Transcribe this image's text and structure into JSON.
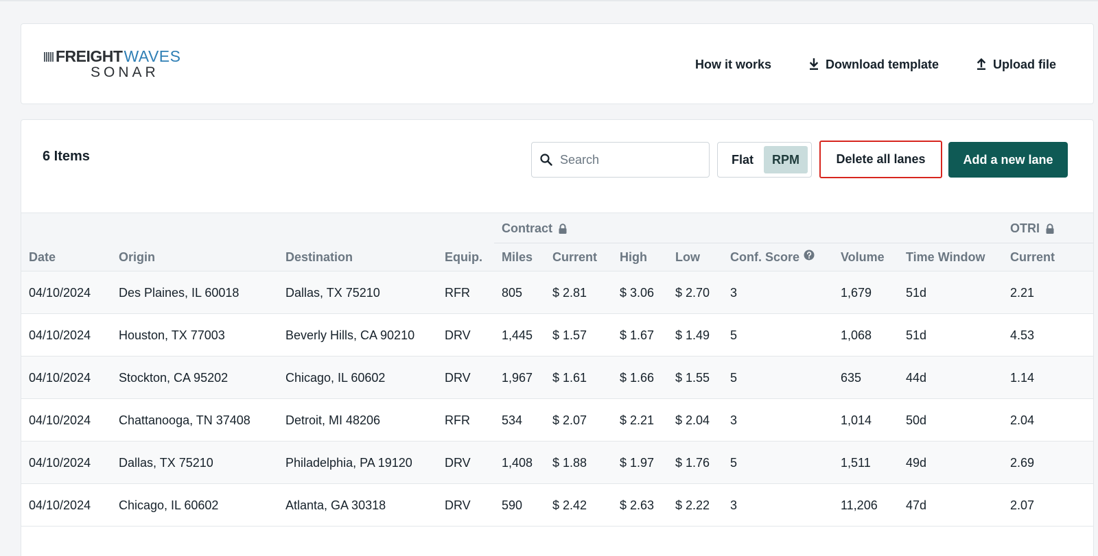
{
  "header": {
    "logo": {
      "brand_bold": "FREIGHT",
      "brand_light": "WAVES",
      "product": "SONAR"
    },
    "nav": [
      {
        "label": "How it works",
        "icon": "none"
      },
      {
        "label": "Download template",
        "icon": "download-icon"
      },
      {
        "label": "Upload file",
        "icon": "upload-icon"
      }
    ]
  },
  "toolbar": {
    "items_count": "6 Items",
    "search_placeholder": "Search",
    "search_value": "",
    "toggle": {
      "flat_label": "Flat",
      "rpm_label": "RPM",
      "selected": "RPM"
    },
    "delete_label": "Delete all lanes",
    "add_label": "Add a new lane"
  },
  "table": {
    "groups": {
      "contract": "Contract",
      "otri": "OTRI"
    },
    "columns": [
      "Date",
      "Origin",
      "Destination",
      "Equip.",
      "Miles",
      "Current",
      "High",
      "Low",
      "Conf. Score",
      "Volume",
      "Time Window",
      "Current"
    ],
    "rows": [
      [
        "04/10/2024",
        "Des Plaines, IL 60018",
        "Dallas, TX 75210",
        "RFR",
        "805",
        "$ 2.81",
        "$ 3.06",
        "$ 2.70",
        "3",
        "1,679",
        "51d",
        "2.21"
      ],
      [
        "04/10/2024",
        "Houston, TX 77003",
        "Beverly Hills, CA 90210",
        "DRV",
        "1,445",
        "$ 1.57",
        "$ 1.67",
        "$ 1.49",
        "5",
        "1,068",
        "51d",
        "4.53"
      ],
      [
        "04/10/2024",
        "Stockton, CA 95202",
        "Chicago, IL 60602",
        "DRV",
        "1,967",
        "$ 1.61",
        "$ 1.66",
        "$ 1.55",
        "5",
        "635",
        "44d",
        "1.14"
      ],
      [
        "04/10/2024",
        "Chattanooga, TN 37408",
        "Detroit, MI 48206",
        "RFR",
        "534",
        "$ 2.07",
        "$ 2.21",
        "$ 2.04",
        "3",
        "1,014",
        "50d",
        "2.04"
      ],
      [
        "04/10/2024",
        "Dallas, TX 75210",
        "Philadelphia, PA 19120",
        "DRV",
        "1,408",
        "$ 1.88",
        "$ 1.97",
        "$ 1.76",
        "5",
        "1,511",
        "49d",
        "2.69"
      ],
      [
        "04/10/2024",
        "Chicago, IL 60602",
        "Atlanta, GA 30318",
        "DRV",
        "590",
        "$ 2.42",
        "$ 2.63",
        "$ 2.22",
        "3",
        "11,206",
        "47d",
        "2.07"
      ]
    ]
  },
  "colors": {
    "primary": "#0f5a55",
    "highlight": "#d7261e",
    "rpm_selected_bg": "#c9dcdc",
    "brand_blue": "#2f7fb5"
  }
}
